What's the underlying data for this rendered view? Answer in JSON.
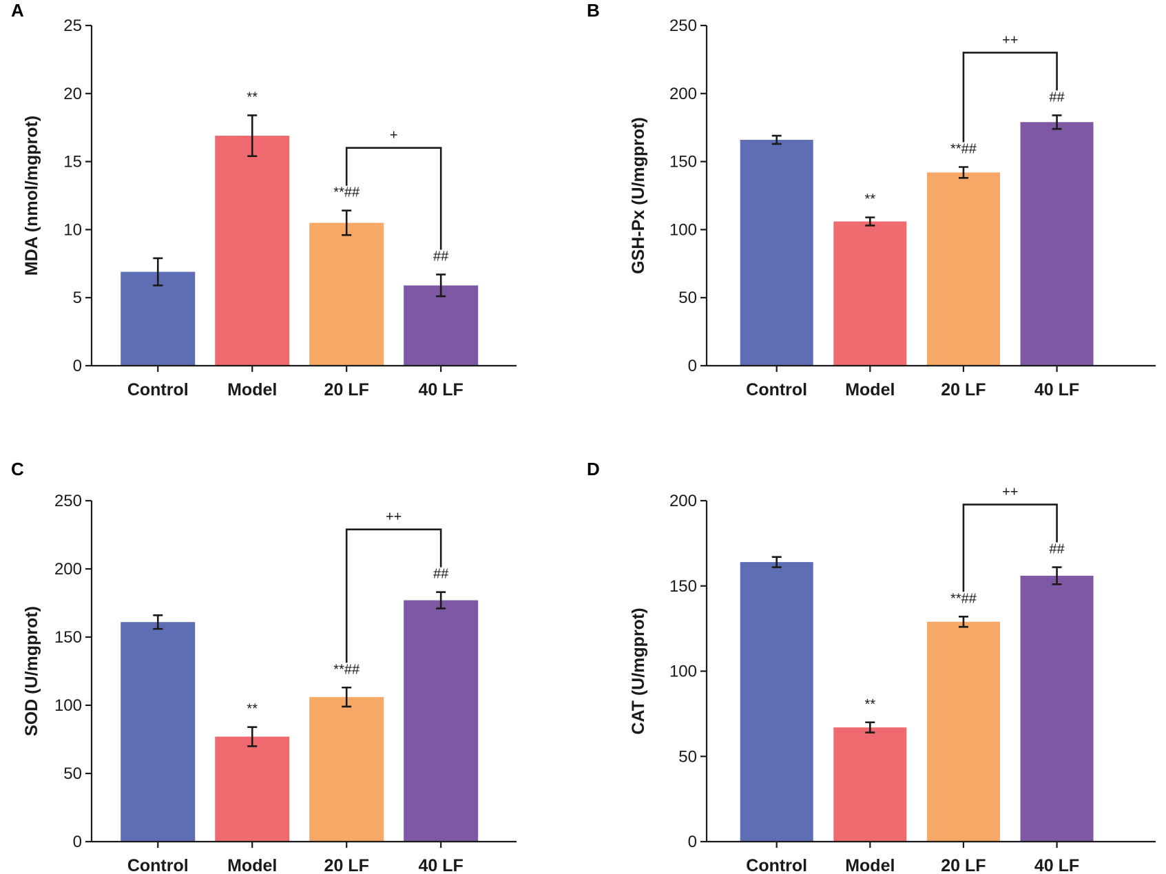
{
  "chart_data": [
    {
      "panel": "A",
      "type": "bar",
      "categories": [
        "Control",
        "Model",
        "20 LF",
        "40 LF"
      ],
      "values": [
        6.9,
        16.9,
        10.5,
        5.9
      ],
      "errors": [
        1.0,
        1.5,
        0.9,
        0.8
      ],
      "ylabel": "MDA (nmol/mgprot)",
      "xlabel": "",
      "ylim": [
        0,
        25
      ],
      "yticks": [
        0,
        5,
        10,
        15,
        20,
        25
      ],
      "colors": [
        "#5e6eb4",
        "#ef6a6f",
        "#f6a866",
        "#7e58a3"
      ],
      "annotations": [
        "",
        "**",
        "**##",
        "##"
      ],
      "bracket": {
        "from": 2,
        "to": 3,
        "label": "+"
      }
    },
    {
      "panel": "B",
      "type": "bar",
      "categories": [
        "Control",
        "Model",
        "20 LF",
        "40 LF"
      ],
      "values": [
        166,
        106,
        142,
        179
      ],
      "errors": [
        3,
        3,
        4,
        5
      ],
      "ylabel": "GSH-Px (U/mgprot)",
      "xlabel": "",
      "ylim": [
        0,
        250
      ],
      "yticks": [
        0,
        50,
        100,
        150,
        200,
        250
      ],
      "colors": [
        "#5e6eb4",
        "#ef6a6f",
        "#f6a866",
        "#7e58a3"
      ],
      "annotations": [
        "",
        "**",
        "**##",
        "##"
      ],
      "bracket": {
        "from": 2,
        "to": 3,
        "label": "++"
      }
    },
    {
      "panel": "C",
      "type": "bar",
      "categories": [
        "Control",
        "Model",
        "20 LF",
        "40 LF"
      ],
      "values": [
        161,
        77,
        106,
        177
      ],
      "errors": [
        5,
        7,
        7,
        6
      ],
      "ylabel": "SOD (U/mgprot)",
      "xlabel": "",
      "ylim": [
        0,
        250
      ],
      "yticks": [
        0,
        50,
        100,
        150,
        200,
        250
      ],
      "colors": [
        "#5e6eb4",
        "#ef6a6f",
        "#f6a866",
        "#7e58a3"
      ],
      "annotations": [
        "",
        "**",
        "**##",
        "##"
      ],
      "bracket": {
        "from": 2,
        "to": 3,
        "label": "++"
      }
    },
    {
      "panel": "D",
      "type": "bar",
      "categories": [
        "Control",
        "Model",
        "20 LF",
        "40 LF"
      ],
      "values": [
        164,
        67,
        129,
        156
      ],
      "errors": [
        3,
        3,
        3,
        5
      ],
      "ylabel": "CAT (U/mgprot)",
      "xlabel": "",
      "ylim": [
        0,
        200
      ],
      "yticks": [
        0,
        50,
        100,
        150,
        200
      ],
      "colors": [
        "#5e6eb4",
        "#ef6a6f",
        "#f6a866",
        "#7e58a3"
      ],
      "annotations": [
        "",
        "**",
        "**##",
        "##"
      ],
      "bracket": {
        "from": 2,
        "to": 3,
        "label": "++"
      }
    }
  ]
}
